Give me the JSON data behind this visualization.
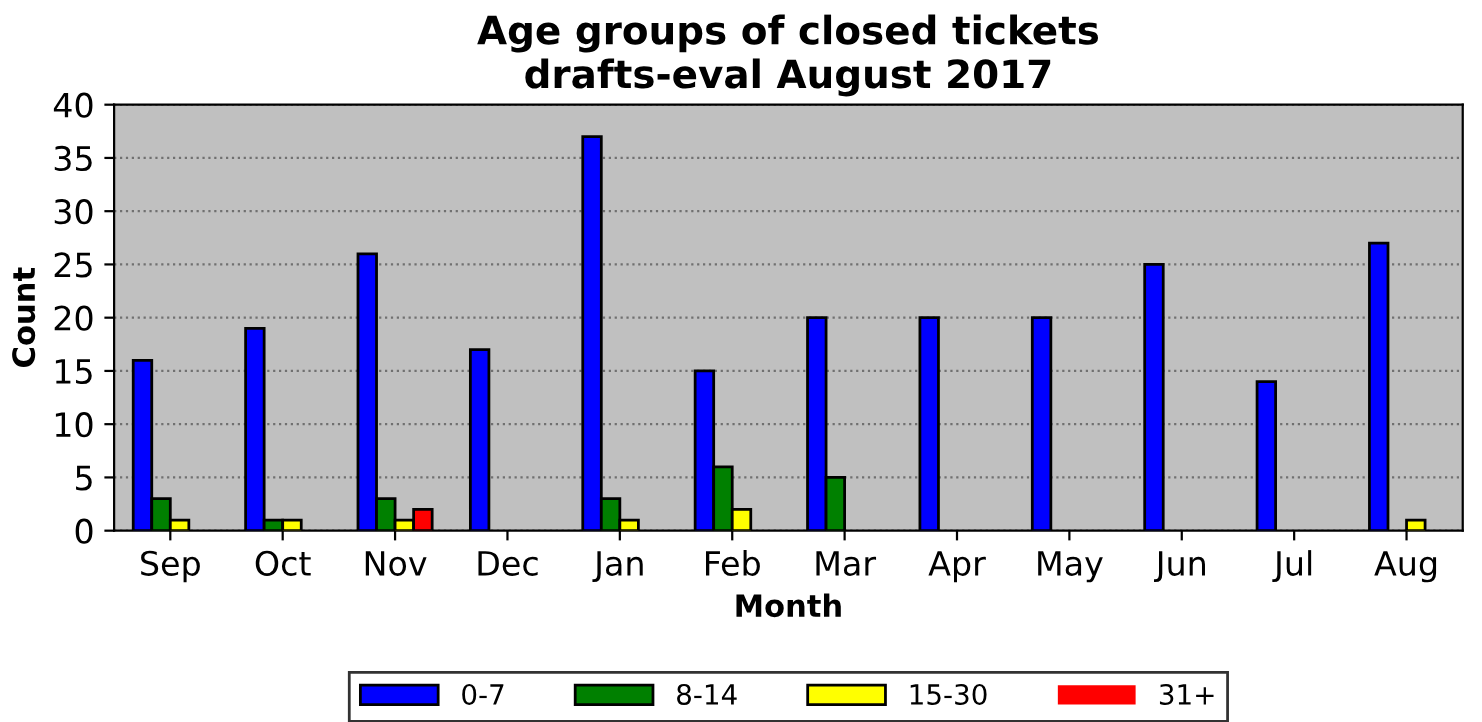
{
  "chart_data": {
    "type": "bar",
    "title": "Age groups of closed tickets\ndrafts-eval August 2017",
    "xlabel": "Month",
    "ylabel": "Count",
    "categories": [
      "Sep",
      "Oct",
      "Nov",
      "Dec",
      "Jan",
      "Feb",
      "Mar",
      "Apr",
      "May",
      "Jun",
      "Jul",
      "Aug"
    ],
    "series": [
      {
        "name": "0-7",
        "color": "#0000ff",
        "values": [
          16,
          19,
          26,
          17,
          37,
          15,
          20,
          20,
          20,
          25,
          14,
          27
        ]
      },
      {
        "name": "8-14",
        "color": "#008000",
        "values": [
          3,
          1,
          3,
          0,
          3,
          6,
          5,
          0,
          0,
          0,
          0,
          0
        ]
      },
      {
        "name": "15-30",
        "color": "#ffff00",
        "values": [
          1,
          1,
          1,
          0,
          1,
          2,
          0,
          0,
          0,
          0,
          0,
          1
        ]
      },
      {
        "name": "31+",
        "color": "#ff0000",
        "values": [
          0,
          0,
          2,
          0,
          0,
          0,
          0,
          0,
          0,
          0,
          0,
          0
        ]
      }
    ],
    "ylim": [
      0,
      40
    ],
    "yticks": [
      0,
      5,
      10,
      15,
      20,
      25,
      30,
      35,
      40
    ],
    "grid": "y",
    "legend": "bottom"
  }
}
